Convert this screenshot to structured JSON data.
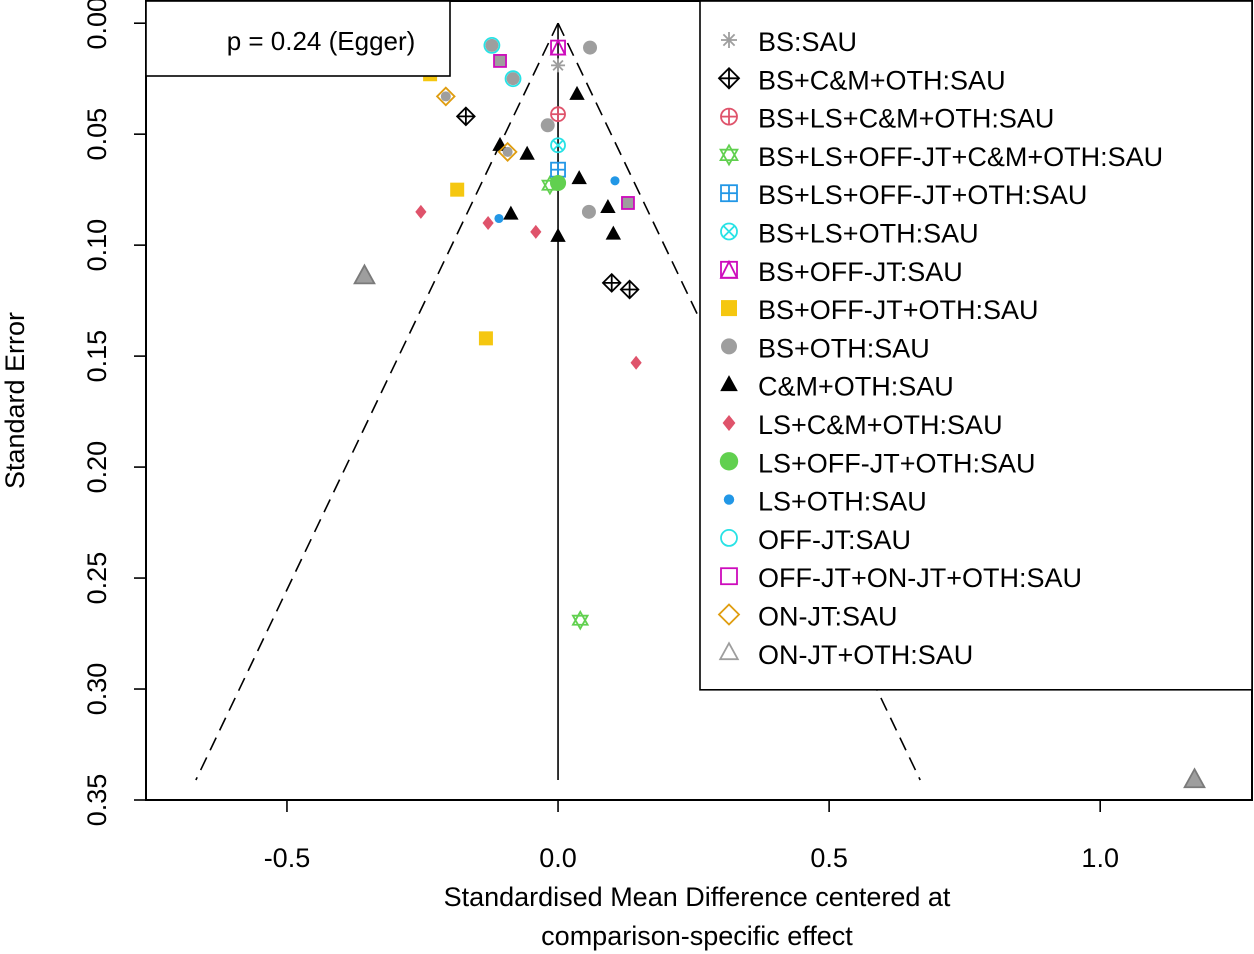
{
  "chart_data": {
    "type": "scatter",
    "subtype": "comparison-adjusted funnel plot",
    "xlabel": [
      "Standardised Mean Difference centered at",
      "comparison-specific effect"
    ],
    "ylabel": "Standard Error",
    "xlim": [
      -0.76,
      1.28
    ],
    "ylim": [
      0.35,
      -0.01
    ],
    "y_reversed": true,
    "x_ticks": [
      -0.5,
      0.0,
      0.5,
      1.0
    ],
    "x_tick_labels": [
      "-0.5",
      "0.0",
      "0.5",
      "1.0"
    ],
    "y_ticks": [
      0.0,
      0.05,
      0.1,
      0.15,
      0.2,
      0.25,
      0.3,
      0.35
    ],
    "y_tick_labels": [
      "0.00",
      "0.05",
      "0.10",
      "0.15",
      "0.20",
      "0.25",
      "0.30",
      "0.35"
    ],
    "grid": false,
    "annotation": "p = 0.24 (Egger)",
    "funnel": {
      "center": 0.0,
      "apex_se": 0.0,
      "max_se": 0.341,
      "left_x": -0.668,
      "right_x": 0.668,
      "style": "dashed"
    },
    "legend_position": "top-right",
    "series": [
      {
        "name": "BS:SAU",
        "symbol": "asterisk",
        "color": "#9E9E9E",
        "points": [
          [
            0.0,
            0.019
          ]
        ]
      },
      {
        "name": "BS+C&M+OTH:SAU",
        "symbol": "diamond-plus",
        "color": "#000000",
        "points": [
          [
            -0.17,
            0.042
          ],
          [
            0.099,
            0.117
          ],
          [
            0.132,
            0.12
          ]
        ]
      },
      {
        "name": "BS+LS+C&M+OTH:SAU",
        "symbol": "circle-plus",
        "color": "#DF536B",
        "points": [
          [
            0.0,
            0.041
          ]
        ]
      },
      {
        "name": "BS+LS+OFF-JT+C&M+OTH:SAU",
        "symbol": "star-of-david",
        "color": "#61D04F",
        "points": [
          [
            -0.015,
            0.073
          ],
          [
            0.041,
            0.269
          ]
        ]
      },
      {
        "name": "BS+LS+OFF-JT+OTH:SAU",
        "symbol": "square-plus",
        "color": "#2297E6",
        "points": [
          [
            0.0,
            0.066
          ]
        ]
      },
      {
        "name": "BS+LS+OTH:SAU",
        "symbol": "circle-x",
        "color": "#28E2E5",
        "points": [
          [
            0.0,
            0.055
          ]
        ]
      },
      {
        "name": "BS+OFF-JT:SAU",
        "symbol": "square-triangle",
        "color": "#CD0BBC",
        "points": [
          [
            0.0,
            0.011
          ]
        ]
      },
      {
        "name": "BS+OFF-JT+OTH:SAU",
        "symbol": "filled-square",
        "color": "#F5C710",
        "points": [
          [
            -0.236,
            0.023
          ],
          [
            -0.186,
            0.075
          ],
          [
            -0.133,
            0.142
          ]
        ]
      },
      {
        "name": "BS+OTH:SAU",
        "symbol": "filled-circle",
        "color": "#9E9E9E",
        "points": [
          [
            0.059,
            0.011
          ],
          [
            -0.019,
            0.046
          ],
          [
            0.057,
            0.085
          ]
        ]
      },
      {
        "name": "C&M+OTH:SAU",
        "symbol": "filled-triangle",
        "color": "#000000",
        "points": [
          [
            0.035,
            0.032
          ],
          [
            -0.107,
            0.055
          ],
          [
            -0.057,
            0.059
          ],
          [
            0.039,
            0.07
          ],
          [
            0.092,
            0.083
          ],
          [
            -0.087,
            0.086
          ],
          [
            0.0,
            0.096
          ],
          [
            0.102,
            0.095
          ]
        ]
      },
      {
        "name": "LS+C&M+OTH:SAU",
        "symbol": "filled-diamond",
        "color": "#DF536B",
        "points": [
          [
            -0.253,
            0.085
          ],
          [
            -0.129,
            0.09
          ],
          [
            -0.041,
            0.094
          ],
          [
            0.144,
            0.153
          ]
        ]
      },
      {
        "name": "LS+OFF-JT+OTH:SAU",
        "symbol": "filled-circle-large",
        "color": "#61D04F",
        "points": [
          [
            0.0,
            0.072
          ]
        ]
      },
      {
        "name": "LS+OTH:SAU",
        "symbol": "filled-circle-small",
        "color": "#2297E6",
        "points": [
          [
            0.105,
            0.071
          ],
          [
            -0.109,
            0.088
          ]
        ]
      },
      {
        "name": "OFF-JT:SAU",
        "symbol": "open-circle",
        "color": "#28E2E5",
        "points": [
          [
            -0.122,
            0.01
          ],
          [
            -0.083,
            0.025
          ]
        ]
      },
      {
        "name": "OFF-JT+ON-JT+OTH:SAU",
        "symbol": "open-square",
        "color": "#CD0BBC",
        "points": [
          [
            -0.107,
            0.017
          ],
          [
            0.129,
            0.081
          ]
        ]
      },
      {
        "name": "ON-JT:SAU",
        "symbol": "open-diamond",
        "color": "#DF9D10",
        "points": [
          [
            -0.207,
            0.033
          ],
          [
            -0.093,
            0.058
          ]
        ]
      },
      {
        "name": "ON-JT+OTH:SAU",
        "symbol": "open-triangle",
        "color": "#9E9E9E",
        "points": [
          [
            -0.357,
            0.114
          ],
          [
            1.174,
            0.341
          ]
        ]
      }
    ]
  }
}
